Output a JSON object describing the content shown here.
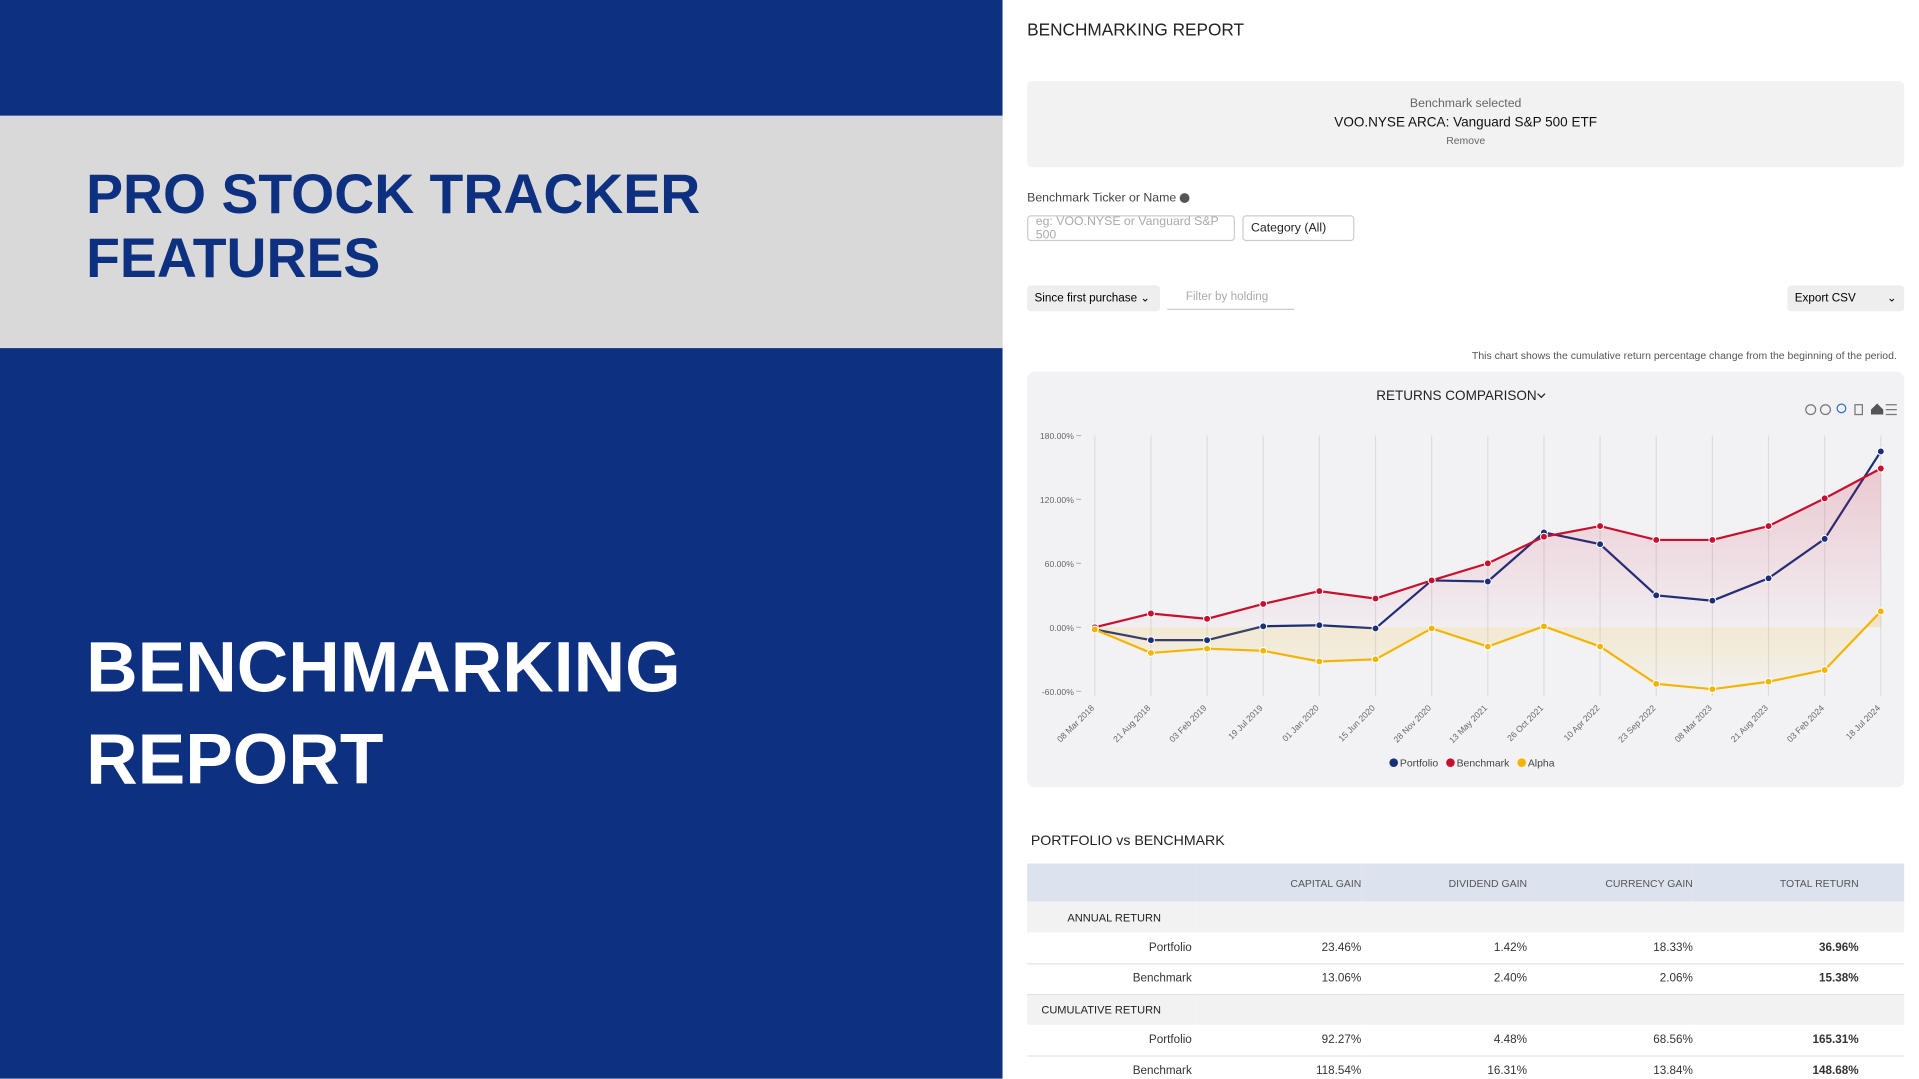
{
  "banner": {
    "title": [
      "PRO STOCK TRACKER",
      "FEATURES"
    ],
    "subtitle": [
      "BENCHMARKING",
      "REPORT"
    ]
  },
  "report": {
    "heading": "BENCHMARKING REPORT",
    "benchmark_caption": "Benchmark selected",
    "benchmark_name": "VOO.NYSE ARCA: Vanguard S&P 500 ETF",
    "remove": "Remove",
    "ticker_label": "Benchmark Ticker or Name",
    "ticker_placeholder": "eg: VOO.NYSE or Vanguard S&P 500",
    "category": "Category (All)",
    "period": "Since first purchase",
    "filter_placeholder": "Filter by holding",
    "export": "Export CSV",
    "chart_note": "This chart shows the cumulative return percentage change from the beginning of the period."
  },
  "chart_data": {
    "type": "line",
    "title": "RETURNS COMPARISON",
    "categories": [
      "08 Mar 2018",
      "21 Aug 2018",
      "03 Feb 2019",
      "19 Jul 2019",
      "01 Jan 2020",
      "15 Jun 2020",
      "28 Nov 2020",
      "13 May 2021",
      "26 Oct 2021",
      "10 Apr 2022",
      "23 Sep 2022",
      "08 Mar 2023",
      "21 Aug 2023",
      "03 Feb 2024",
      "18 Jul 2024"
    ],
    "series": [
      {
        "name": "Portfolio",
        "color": "#1a2f7a",
        "values": [
          -2,
          -12,
          -12,
          1,
          2,
          -1,
          44,
          43,
          89,
          78,
          30,
          25,
          46,
          83,
          165
        ]
      },
      {
        "name": "Benchmark",
        "color": "#c8102e",
        "values": [
          0,
          13,
          8,
          22,
          34,
          27,
          44,
          60,
          85,
          95,
          82,
          82,
          95,
          121,
          149
        ]
      },
      {
        "name": "Alpha",
        "color": "#f5b400",
        "values": [
          -2,
          -24,
          -20,
          -22,
          -32,
          -30,
          -1,
          -18,
          1,
          -18,
          -53,
          -58,
          -51,
          -40,
          15
        ]
      }
    ],
    "ylim": [
      -60,
      180
    ],
    "yticks": [
      {
        "value": -60,
        "label": "-60.00%"
      },
      {
        "value": 0,
        "label": "0.00%"
      },
      {
        "value": 60,
        "label": "60.00%"
      },
      {
        "value": 120,
        "label": "120.00%"
      },
      {
        "value": 180,
        "label": "180.00%"
      }
    ],
    "grid": true,
    "legend": "bottom"
  },
  "table": {
    "title": "PORTFOLIO vs BENCHMARK",
    "columns": [
      "CAPITAL GAIN",
      "DIVIDEND GAIN",
      "CURRENCY GAIN",
      "TOTAL RETURN"
    ],
    "sections": [
      {
        "title": "ANNUAL RETURN",
        "rows": [
          {
            "label": "Portfolio",
            "cells": [
              "23.46%",
              "1.42%",
              "18.33%",
              "36.96%"
            ]
          },
          {
            "label": "Benchmark",
            "cells": [
              "13.06%",
              "2.40%",
              "2.06%",
              "15.38%"
            ]
          }
        ]
      },
      {
        "title": "CUMULATIVE RETURN",
        "rows": [
          {
            "label": "Portfolio",
            "cells": [
              "92.27%",
              "4.48%",
              "68.56%",
              "165.31%"
            ]
          },
          {
            "label": "Benchmark",
            "cells": [
              "118.54%",
              "16.31%",
              "13.84%",
              "148.68%"
            ]
          }
        ]
      }
    ]
  }
}
